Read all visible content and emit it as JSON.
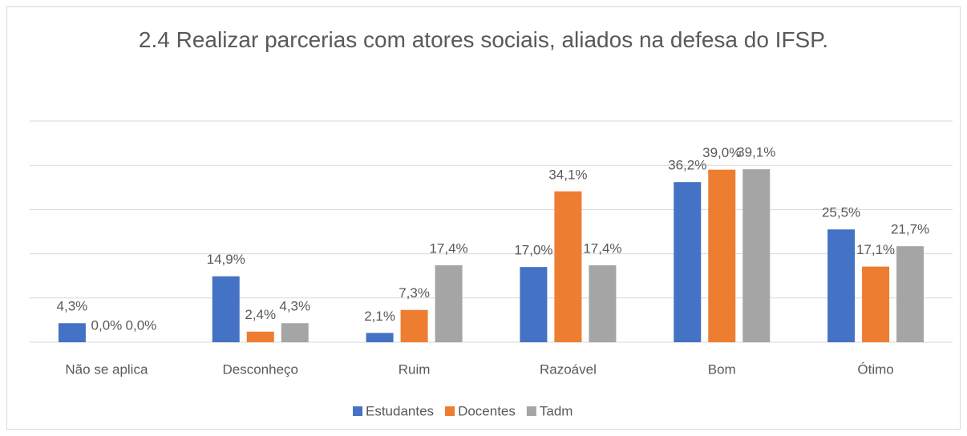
{
  "chart_data": {
    "type": "bar",
    "title": "2.4 Realizar parcerias com atores sociais, aliados na defesa do IFSP.",
    "categories": [
      "Não se aplica",
      "Desconheço",
      "Ruim",
      "Razoável",
      "Bom",
      "Ótimo"
    ],
    "series": [
      {
        "name": "Estudantes",
        "color": "#4472c4",
        "values": [
          4.3,
          14.9,
          2.1,
          17.0,
          36.2,
          25.5
        ],
        "value_labels": [
          "4,3%",
          "14,9%",
          "2,1%",
          "17,0%",
          "36,2%",
          "25,5%"
        ]
      },
      {
        "name": "Docentes",
        "color": "#ed7d31",
        "values": [
          0.0,
          2.4,
          7.3,
          34.1,
          39.0,
          17.1
        ],
        "value_labels": [
          "0,0%",
          "2,4%",
          "7,3%",
          "34,1%",
          "39,0%",
          "17,1%"
        ]
      },
      {
        "name": "Tadm",
        "color": "#a5a5a5",
        "values": [
          0.0,
          4.3,
          17.4,
          17.4,
          39.1,
          21.7
        ],
        "value_labels": [
          "0,0%",
          "4,3%",
          "17,4%",
          "17,4%",
          "39,1%",
          "21,7%"
        ]
      }
    ],
    "ylim": [
      0,
      50
    ],
    "yticks": [
      0,
      10,
      20,
      30,
      40,
      50
    ],
    "grid": true,
    "legend": "bottom"
  }
}
